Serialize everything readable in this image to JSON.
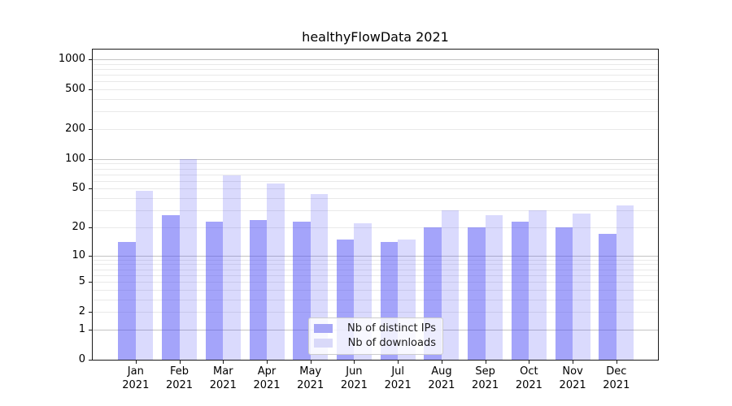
{
  "chart_data": {
    "type": "bar",
    "title": "healthyFlowData 2021",
    "x_year": "2021",
    "x_months": [
      "Jan",
      "Feb",
      "Mar",
      "Apr",
      "May",
      "Jun",
      "Jul",
      "Aug",
      "Sep",
      "Oct",
      "Nov",
      "Dec"
    ],
    "categories": [
      "Jan 2021",
      "Feb 2021",
      "Mar 2021",
      "Apr 2021",
      "May 2021",
      "Jun 2021",
      "Jul 2021",
      "Aug 2021",
      "Sep 2021",
      "Oct 2021",
      "Nov 2021",
      "Dec 2021"
    ],
    "series": [
      {
        "name": "Nb of distinct IPs",
        "color": "rgba(80,80,245,0.52)",
        "legend_color": "#a6a6f6",
        "values": [
          14,
          27,
          23,
          24,
          23,
          15,
          14,
          20,
          20,
          23,
          20,
          17
        ]
      },
      {
        "name": "Nb of downloads",
        "color": "rgba(80,80,245,0.21)",
        "legend_color": "#d9d9f9",
        "values": [
          48,
          100,
          68,
          57,
          44,
          22,
          15,
          30,
          27,
          30,
          28,
          34
        ]
      }
    ],
    "y_scale": "log1p",
    "y_ticks": [
      0,
      1,
      2,
      5,
      10,
      20,
      50,
      100,
      200,
      500,
      1000
    ],
    "y_major_lines": [
      1,
      10,
      100,
      1000
    ],
    "ylim": [
      0,
      1290
    ],
    "xlabel": "",
    "ylabel": "",
    "grid": {
      "major_color": "#c3c3c3",
      "minor_color": "#e9e9e9"
    },
    "legend_position": "inside-bottom-center"
  }
}
